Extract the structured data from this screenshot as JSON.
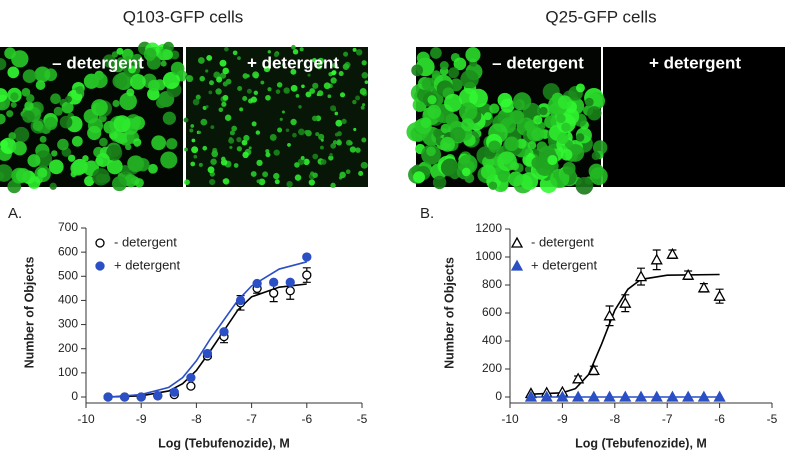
{
  "panels": [
    {
      "title": "Q103-GFP cells",
      "images": [
        {
          "label": "– detergent"
        },
        {
          "label": "+ detergent"
        }
      ]
    },
    {
      "title": "Q25-GFP cells",
      "images": [
        {
          "label": "– detergent"
        },
        {
          "label": "+ detergent"
        }
      ]
    }
  ],
  "chart_data": [
    {
      "type": "scatter",
      "panel_label": "A.",
      "xlabel": "Log (Tebufenozide), M",
      "ylabel": "Number of Objects",
      "xlim": [
        -10,
        -5
      ],
      "xticks": [
        -10,
        -9,
        -8,
        -7,
        -6,
        -5
      ],
      "ylim": [
        0,
        700
      ],
      "yticks": [
        0,
        100,
        200,
        300,
        400,
        500,
        600,
        700
      ],
      "x": [
        -9.6,
        -9.3,
        -9.0,
        -8.7,
        -8.4,
        -8.1,
        -7.8,
        -7.5,
        -7.2,
        -6.9,
        -6.6,
        -6.3,
        -6.0
      ],
      "series": [
        {
          "name": "- detergent",
          "color": "#000000",
          "marker": "circle",
          "filled": false,
          "values": [
            0,
            0,
            0,
            5,
            10,
            45,
            170,
            250,
            390,
            450,
            430,
            440,
            505
          ],
          "errors": [
            0,
            0,
            0,
            0,
            0,
            0,
            10,
            25,
            30,
            20,
            35,
            35,
            30
          ],
          "fit": {
            "x": [
              -9.6,
              -9.0,
              -8.5,
              -8.25,
              -8.0,
              -7.75,
              -7.5,
              -7.25,
              -7.0,
              -6.5,
              -6.0
            ],
            "values": [
              0,
              5,
              25,
              55,
              110,
              190,
              275,
              360,
              415,
              455,
              468
            ]
          }
        },
        {
          "name": "+ detergent",
          "color": "#2b4fc4",
          "marker": "circle",
          "filled": true,
          "values": [
            0,
            0,
            0,
            5,
            20,
            80,
            180,
            270,
            400,
            470,
            475,
            475,
            580
          ],
          "fit": {
            "x": [
              -9.6,
              -9.0,
              -8.5,
              -8.25,
              -8.0,
              -7.75,
              -7.5,
              -7.25,
              -7.0,
              -6.5,
              -6.0
            ],
            "values": [
              0,
              10,
              40,
              80,
              150,
              240,
              320,
              400,
              460,
              530,
              560
            ]
          }
        }
      ]
    },
    {
      "type": "scatter",
      "panel_label": "B.",
      "xlabel": "Log (Tebufenozide), M",
      "ylabel": "Number of Objects",
      "xlim": [
        -10,
        -5
      ],
      "xticks": [
        -10,
        -9,
        -8,
        -7,
        -6,
        -5
      ],
      "ylim": [
        0,
        1200
      ],
      "yticks": [
        0,
        200,
        400,
        600,
        800,
        1000,
        1200
      ],
      "x": [
        -9.6,
        -9.3,
        -9.0,
        -8.7,
        -8.4,
        -8.1,
        -7.8,
        -7.5,
        -7.2,
        -6.9,
        -6.6,
        -6.3,
        -6.0
      ],
      "series": [
        {
          "name": "- detergent",
          "color": "#000000",
          "marker": "triangle",
          "filled": false,
          "values": [
            25,
            30,
            35,
            130,
            190,
            580,
            670,
            860,
            980,
            1020,
            870,
            780,
            720
          ],
          "errors": [
            0,
            0,
            0,
            20,
            30,
            70,
            60,
            60,
            70,
            30,
            30,
            30,
            50
          ],
          "fit": {
            "x": [
              -9.6,
              -9.0,
              -8.75,
              -8.5,
              -8.25,
              -8.0,
              -7.75,
              -7.5,
              -7.0,
              -6.0
            ],
            "values": [
              20,
              30,
              60,
              160,
              380,
              620,
              770,
              840,
              870,
              875
            ]
          }
        },
        {
          "name": "+ detergent",
          "color": "#2b4fc4",
          "marker": "triangle",
          "filled": true,
          "values": [
            0,
            0,
            0,
            0,
            0,
            0,
            0,
            0,
            0,
            0,
            0,
            0,
            0
          ],
          "fit": {
            "x": [
              -9.6,
              -6.0
            ],
            "values": [
              0,
              0
            ]
          }
        }
      ]
    }
  ]
}
